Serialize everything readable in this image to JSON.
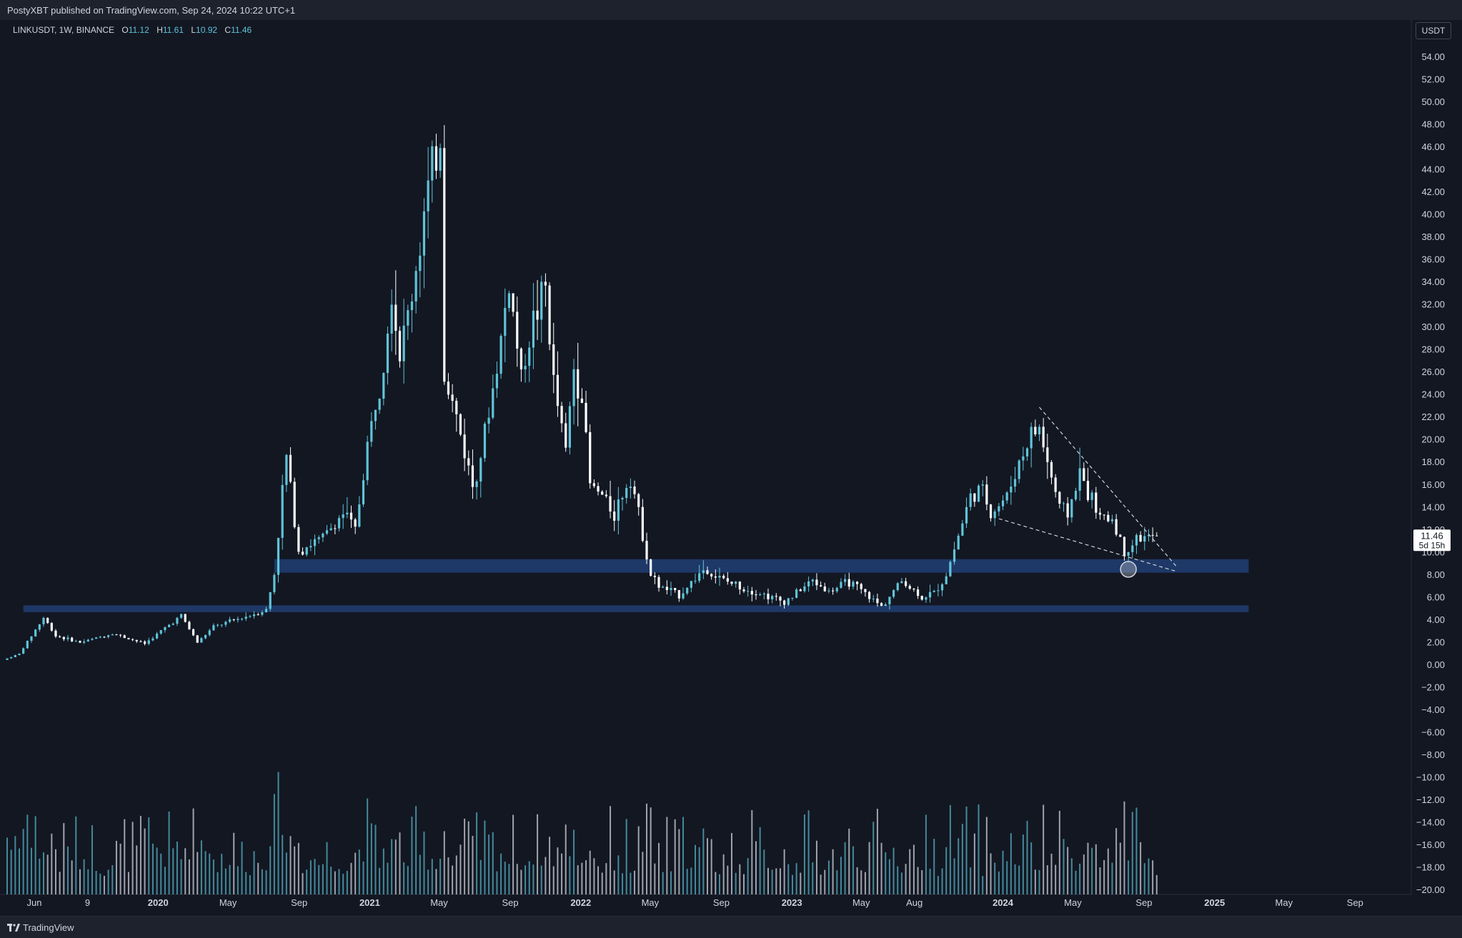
{
  "header": {
    "published_line": "PostyXBT published on TradingView.com, Sep 24, 2024 10:22 UTC+1"
  },
  "legend": {
    "symbol_line": "LINKUSDT, 1W, BINANCE",
    "open_label": "O",
    "open": "11.12",
    "high_label": "H",
    "high": "11.61",
    "low_label": "L",
    "low": "10.92",
    "close_label": "C",
    "close": "11.46"
  },
  "currency_button": "USDT",
  "price_tag": {
    "price": "11.46",
    "countdown": "5d 15h"
  },
  "footer": {
    "logo_text": "TradingView",
    "logo_icon": "tradingview-logo-icon"
  },
  "colors": {
    "background": "#131722",
    "candle_up": "#5fc4d8",
    "candle_down": "#ffffff",
    "zone": "#1f3a6b",
    "volume_up": "#4e9fb0",
    "volume_down": "#b8bcc5"
  },
  "chart_data": {
    "type": "candlestick",
    "symbol": "LINKUSDT",
    "interval": "1W",
    "exchange": "BINANCE",
    "y_axis": {
      "ylim": [
        -20,
        56
      ],
      "ticks": [
        "54.00",
        "52.00",
        "50.00",
        "48.00",
        "46.00",
        "44.00",
        "42.00",
        "40.00",
        "38.00",
        "36.00",
        "34.00",
        "32.00",
        "30.00",
        "28.00",
        "26.00",
        "24.00",
        "22.00",
        "20.00",
        "18.00",
        "16.00",
        "14.00",
        "12.00",
        "10.00",
        "8.00",
        "6.00",
        "4.00",
        "2.00",
        "0.00",
        "−2.00",
        "−4.00",
        "−6.00",
        "−8.00",
        "−10.00",
        "−12.00",
        "−14.00",
        "−16.00",
        "−18.00",
        "−20.00"
      ]
    },
    "x_axis": {
      "start": "2019-04-15",
      "end": "2025-12-01",
      "ticks": [
        {
          "label": "Jun",
          "date": "2019-06-01",
          "bold": false
        },
        {
          "label": "9",
          "date": "2019-09-01",
          "bold": false
        },
        {
          "label": "2020",
          "date": "2020-01-01",
          "bold": true
        },
        {
          "label": "May",
          "date": "2020-05-01",
          "bold": false
        },
        {
          "label": "Sep",
          "date": "2020-09-01",
          "bold": false
        },
        {
          "label": "2021",
          "date": "2021-01-01",
          "bold": true
        },
        {
          "label": "May",
          "date": "2021-05-01",
          "bold": false
        },
        {
          "label": "Sep",
          "date": "2021-09-01",
          "bold": false
        },
        {
          "label": "2022",
          "date": "2022-01-01",
          "bold": true
        },
        {
          "label": "May",
          "date": "2022-05-01",
          "bold": false
        },
        {
          "label": "Sep",
          "date": "2022-09-01",
          "bold": false
        },
        {
          "label": "2023",
          "date": "2023-01-01",
          "bold": true
        },
        {
          "label": "May",
          "date": "2023-05-01",
          "bold": false
        },
        {
          "label": "Aug",
          "date": "2023-08-01",
          "bold": false
        },
        {
          "label": "2024",
          "date": "2024-01-01",
          "bold": true
        },
        {
          "label": "May",
          "date": "2024-05-01",
          "bold": false
        },
        {
          "label": "Sep",
          "date": "2024-09-01",
          "bold": false
        },
        {
          "label": "2025",
          "date": "2025-01-01",
          "bold": true
        },
        {
          "label": "May",
          "date": "2025-05-01",
          "bold": false
        },
        {
          "label": "Sep",
          "date": "2025-09-01",
          "bold": false
        }
      ]
    },
    "price_anchors": [
      [
        "2019-04-15",
        0.45
      ],
      [
        "2019-05-13",
        1.0
      ],
      [
        "2019-06-24",
        4.2
      ],
      [
        "2019-07-15",
        2.6
      ],
      [
        "2019-08-26",
        2.0
      ],
      [
        "2019-10-21",
        2.8
      ],
      [
        "2019-12-16",
        1.9
      ],
      [
        "2020-02-17",
        4.4
      ],
      [
        "2020-03-16",
        2.0
      ],
      [
        "2020-04-13",
        3.4
      ],
      [
        "2020-06-01",
        4.2
      ],
      [
        "2020-07-13",
        4.9
      ],
      [
        "2020-07-27",
        8.1
      ],
      [
        "2020-08-10",
        15.5
      ],
      [
        "2020-08-17",
        18.5
      ],
      [
        "2020-09-07",
        10.2
      ],
      [
        "2020-10-19",
        11.3
      ],
      [
        "2020-11-23",
        13.5
      ],
      [
        "2020-12-14",
        12.0
      ],
      [
        "2021-01-04",
        19.5
      ],
      [
        "2021-01-25",
        25.0
      ],
      [
        "2021-02-15",
        33.5
      ],
      [
        "2021-03-01",
        27.5
      ],
      [
        "2021-03-22",
        33.0
      ],
      [
        "2021-04-12",
        40.0
      ],
      [
        "2021-05-10",
        47.0
      ],
      [
        "2021-05-17",
        26.0
      ],
      [
        "2021-06-07",
        22.0
      ],
      [
        "2021-07-05",
        16.0
      ],
      [
        "2021-07-26",
        20.5
      ],
      [
        "2021-08-16",
        26.5
      ],
      [
        "2021-09-06",
        34.0
      ],
      [
        "2021-09-27",
        25.5
      ],
      [
        "2021-10-11",
        29.5
      ],
      [
        "2021-11-08",
        33.5
      ],
      [
        "2021-11-22",
        25.0
      ],
      [
        "2021-12-13",
        19.0
      ],
      [
        "2021-12-27",
        26.5
      ],
      [
        "2022-01-10",
        24.0
      ],
      [
        "2022-01-24",
        16.0
      ],
      [
        "2022-02-14",
        15.0
      ],
      [
        "2022-03-07",
        13.5
      ],
      [
        "2022-04-04",
        17.0
      ],
      [
        "2022-05-09",
        8.0
      ],
      [
        "2022-05-23",
        7.0
      ],
      [
        "2022-06-27",
        6.2
      ],
      [
        "2022-08-08",
        8.5
      ],
      [
        "2022-09-12",
        7.5
      ],
      [
        "2022-11-07",
        6.5
      ],
      [
        "2022-12-26",
        5.6
      ],
      [
        "2023-02-13",
        7.5
      ],
      [
        "2023-03-13",
        6.5
      ],
      [
        "2023-04-17",
        7.4
      ],
      [
        "2023-06-12",
        5.2
      ],
      [
        "2023-07-17",
        7.5
      ],
      [
        "2023-08-21",
        6.0
      ],
      [
        "2023-09-11",
        6.4
      ],
      [
        "2023-10-02",
        8.0
      ],
      [
        "2023-10-23",
        11.5
      ],
      [
        "2023-11-13",
        15.0
      ],
      [
        "2023-12-04",
        15.5
      ],
      [
        "2023-12-18",
        13.5
      ],
      [
        "2024-01-15",
        15.0
      ],
      [
        "2024-02-05",
        18.0
      ],
      [
        "2024-02-26",
        20.5
      ],
      [
        "2024-03-11",
        21.0
      ],
      [
        "2024-03-25",
        18.0
      ],
      [
        "2024-04-15",
        14.0
      ],
      [
        "2024-04-29",
        13.5
      ],
      [
        "2024-05-20",
        17.0
      ],
      [
        "2024-06-03",
        15.5
      ],
      [
        "2024-06-24",
        13.0
      ],
      [
        "2024-07-15",
        13.0
      ],
      [
        "2024-08-05",
        10.0
      ],
      [
        "2024-08-26",
        11.2
      ],
      [
        "2024-09-23",
        11.46
      ]
    ],
    "zones": [
      {
        "from": "2020-07-20",
        "to": "2025-03-01",
        "low": 8.2,
        "high": 9.4
      },
      {
        "from": "2019-05-13",
        "to": "2025-03-01",
        "low": 4.7,
        "high": 5.3
      }
    ],
    "trendlines": [
      {
        "from_date": "2024-03-04",
        "from_price": 22.9,
        "to_date": "2024-10-28",
        "to_price": 8.7
      },
      {
        "from_date": "2023-12-25",
        "from_price": 13.0,
        "to_date": "2024-10-28",
        "to_price": 8.3
      }
    ],
    "marker_circle": {
      "date": "2024-08-05",
      "price": 8.5
    },
    "last_price": 11.46
  }
}
